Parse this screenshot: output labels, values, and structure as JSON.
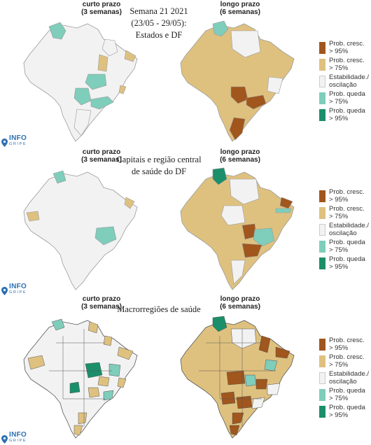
{
  "title": {
    "line1": "Semana 21 2021",
    "line2": "(23/05 - 29/05):",
    "line3": "Estados e DF"
  },
  "short_term_label": [
    "curto prazo",
    "(3 semanas)"
  ],
  "long_term_label": [
    "longo prazo",
    "(6 semanas)"
  ],
  "sections": [
    {
      "id": "estados",
      "title": [
        "Semana 21 2021",
        "(23/05 - 29/05):",
        "Estados e DF"
      ]
    },
    {
      "id": "capitais",
      "title": [
        "Capitais e região central",
        "de saúde do DF"
      ]
    },
    {
      "id": "macrorregioes",
      "title": [
        "Macrorregiões de saúde"
      ]
    }
  ],
  "legend": [
    {
      "label": [
        "Prob. cresc.",
        "> 95%"
      ],
      "color": "#a0561c"
    },
    {
      "label": [
        "Prob. cresc.",
        "> 75%"
      ],
      "color": "#dfc17f"
    },
    {
      "label": [
        "Estabilidade./",
        "oscilação"
      ],
      "color": "#f2f2f2"
    },
    {
      "label": [
        "Prob. queda",
        "> 75%"
      ],
      "color": "#7fcdbb"
    },
    {
      "label": [
        "Prob. queda",
        "> 95%"
      ],
      "color": "#1b8f6a"
    }
  ],
  "logo": {
    "main": "INFO",
    "sub": "GRIPE",
    "icon": "location-pin-icon"
  },
  "colors": {
    "strong_up": "#a0561c",
    "up": "#dfc17f",
    "stable": "#f2f2f2",
    "down": "#7fcdbb",
    "strong_down": "#1b8f6a",
    "border": "#9a9a9a"
  }
}
